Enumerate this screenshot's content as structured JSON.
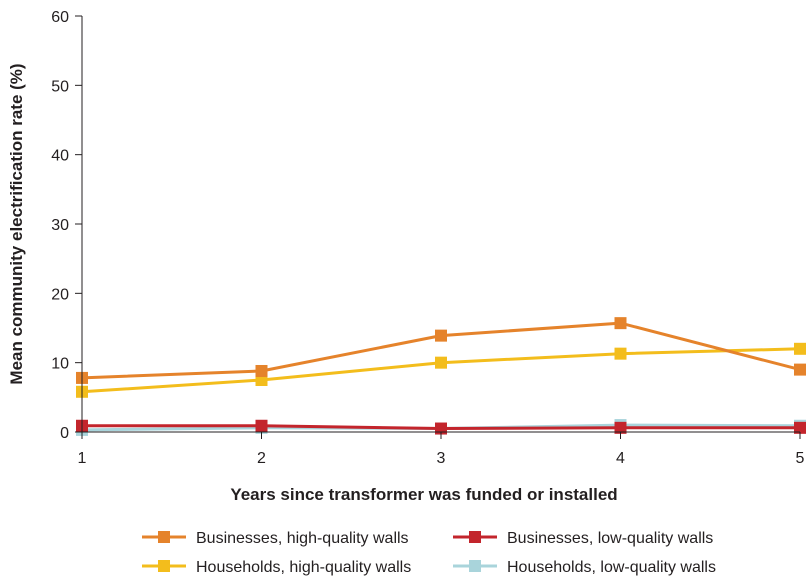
{
  "chart_data": {
    "type": "line",
    "title": "",
    "xlabel": "Years since transformer was funded or installed",
    "ylabel": "Mean community electrification rate (%)",
    "x": [
      1,
      2,
      3,
      4,
      5
    ],
    "xlim": [
      1,
      5
    ],
    "ylim": [
      0,
      60
    ],
    "yticks": [
      0,
      10,
      20,
      30,
      40,
      50,
      60
    ],
    "grid": false,
    "legend_position": "bottom",
    "series": [
      {
        "name": "Businesses, high-quality walls",
        "color": "#e5832b",
        "values": [
          7.8,
          8.8,
          13.9,
          15.7,
          9.0
        ]
      },
      {
        "name": "Businesses, low-quality walls",
        "color": "#c3252c",
        "values": [
          0.9,
          0.9,
          0.5,
          0.6,
          0.6
        ]
      },
      {
        "name": "Households, high-quality walls",
        "color": "#f3bd1c",
        "values": [
          5.8,
          7.5,
          10.0,
          11.3,
          12.0
        ]
      },
      {
        "name": "Households, low-quality walls",
        "color": "#a9d4db",
        "values": [
          0.3,
          0.6,
          0.5,
          1.0,
          0.9
        ]
      }
    ]
  }
}
